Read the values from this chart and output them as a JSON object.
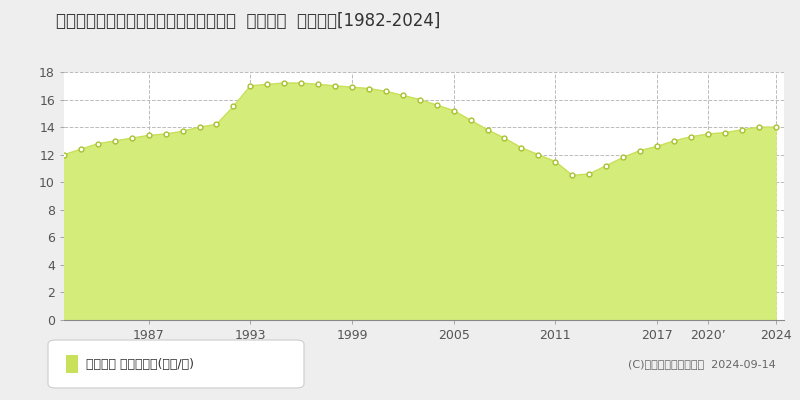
{
  "title": "福島県いわき市常磐関船町堀田９番３外  地価公示  地価推移[1982-2024]",
  "years": [
    1982,
    1983,
    1984,
    1985,
    1986,
    1987,
    1988,
    1989,
    1990,
    1991,
    1992,
    1993,
    1994,
    1995,
    1996,
    1997,
    1998,
    1999,
    2000,
    2001,
    2002,
    2003,
    2004,
    2005,
    2006,
    2007,
    2008,
    2009,
    2010,
    2011,
    2012,
    2013,
    2014,
    2015,
    2016,
    2017,
    2018,
    2019,
    2020,
    2021,
    2022,
    2023,
    2024
  ],
  "values": [
    12.0,
    12.4,
    12.8,
    13.0,
    13.2,
    13.4,
    13.5,
    13.7,
    14.0,
    14.2,
    15.5,
    17.0,
    17.1,
    17.2,
    17.2,
    17.1,
    17.0,
    16.9,
    16.8,
    16.6,
    16.3,
    16.0,
    15.6,
    15.2,
    14.5,
    13.8,
    13.2,
    12.5,
    12.0,
    11.5,
    10.5,
    10.6,
    11.2,
    11.8,
    12.3,
    12.6,
    13.0,
    13.3,
    13.5,
    13.6,
    13.8,
    14.0,
    14.0
  ],
  "line_color": "#c8e05a",
  "fill_color": "#d4ed7a",
  "marker_facecolor": "#ffffff",
  "marker_edgecolor": "#a8c030",
  "bg_color": "#eeeeee",
  "plot_bg_color": "#ffffff",
  "grid_color": "#bbbbbb",
  "grid_style": "--",
  "yticks": [
    0,
    2,
    4,
    6,
    8,
    10,
    12,
    14,
    16,
    18
  ],
  "xtick_positions": [
    1987,
    1993,
    1999,
    2005,
    2011,
    2017,
    2020,
    2024
  ],
  "xtick_labels": [
    "1987",
    "1993",
    "1999",
    "2005",
    "2011",
    "2017",
    "2020’",
    "2024"
  ],
  "ylim": [
    0,
    18
  ],
  "xlim": [
    1982,
    2024.5
  ],
  "legend_label": "地価公示 平均坪単価(万円/坪)",
  "legend_marker_color": "#c8e05a",
  "copyright_text": "(C)土地価格ドットコム  2024-09-14",
  "title_fontsize": 12,
  "tick_fontsize": 9,
  "legend_fontsize": 9,
  "copyright_fontsize": 8
}
